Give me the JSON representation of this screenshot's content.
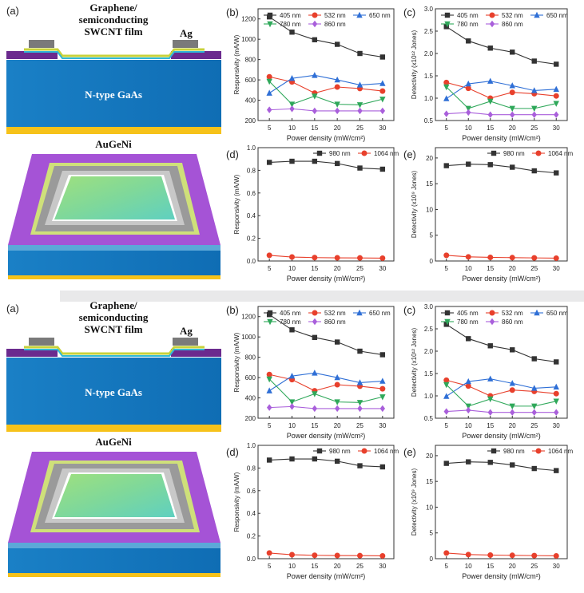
{
  "schematic": {
    "panel_label": "(a)",
    "film_label_1": "Graphene/",
    "film_label_2": "semiconducting",
    "film_label_3": "SWCNT film",
    "electrode_label": "Ag",
    "substrate_label": "N-type GaAs",
    "back_contact_label": "AuGeNi"
  },
  "chart_data": [
    {
      "panel": "(b)",
      "type": "line",
      "x": [
        5,
        10,
        15,
        20,
        25,
        30
      ],
      "xlabel": "Power density (mW/cm²)",
      "ylabel": "Responsivity (mA/W)",
      "ylim": [
        200,
        1300
      ],
      "yticks": [
        200,
        400,
        600,
        800,
        1000,
        1200
      ],
      "legend_columns": 3,
      "series": [
        {
          "name": "405 nm",
          "color": "#333333",
          "marker": "square",
          "values": [
            1220,
            1070,
            995,
            950,
            860,
            825
          ]
        },
        {
          "name": "532 nm",
          "color": "#e8402c",
          "marker": "circle",
          "values": [
            630,
            580,
            470,
            530,
            515,
            490
          ]
        },
        {
          "name": "650 nm",
          "color": "#2f6fd6",
          "marker": "triangle-up",
          "values": [
            470,
            615,
            645,
            600,
            550,
            565
          ]
        },
        {
          "name": "780 nm",
          "color": "#2fa85a",
          "marker": "triangle-down",
          "values": [
            585,
            360,
            440,
            360,
            355,
            410
          ]
        },
        {
          "name": "860 nm",
          "color": "#a95fdb",
          "marker": "diamond",
          "values": [
            305,
            315,
            295,
            295,
            295,
            295
          ]
        }
      ]
    },
    {
      "panel": "(c)",
      "type": "line",
      "x": [
        5,
        10,
        15,
        20,
        25,
        30
      ],
      "xlabel": "Power density (mW/cm²)",
      "ylabel": "Detectivity (x10¹² Jones)",
      "ylim": [
        0.5,
        3.0
      ],
      "yticks": [
        0.5,
        1.0,
        1.5,
        2.0,
        2.5,
        3.0
      ],
      "legend_columns": 3,
      "series": [
        {
          "name": "405 nm",
          "color": "#333333",
          "marker": "square",
          "values": [
            2.6,
            2.28,
            2.12,
            2.03,
            1.83,
            1.76
          ]
        },
        {
          "name": "532 nm",
          "color": "#e8402c",
          "marker": "circle",
          "values": [
            1.35,
            1.22,
            1.0,
            1.13,
            1.1,
            1.05
          ]
        },
        {
          "name": "650 nm",
          "color": "#2f6fd6",
          "marker": "triangle-up",
          "values": [
            0.99,
            1.32,
            1.38,
            1.28,
            1.17,
            1.2
          ]
        },
        {
          "name": "780 nm",
          "color": "#2fa85a",
          "marker": "triangle-down",
          "values": [
            1.25,
            0.77,
            0.93,
            0.77,
            0.77,
            0.88
          ]
        },
        {
          "name": "860 nm",
          "color": "#a95fdb",
          "marker": "diamond",
          "values": [
            0.65,
            0.68,
            0.63,
            0.63,
            0.63,
            0.63
          ]
        }
      ]
    },
    {
      "panel": "(d)",
      "type": "line",
      "x": [
        5,
        10,
        15,
        20,
        25,
        30
      ],
      "xlabel": "Power density (mW/cm²)",
      "ylabel": "Responsivity (mA/W)",
      "ylim": [
        0.0,
        1.0
      ],
      "yticks": [
        0.0,
        0.2,
        0.4,
        0.6,
        0.8,
        1.0
      ],
      "legend_columns": 2,
      "series": [
        {
          "name": "980 nm",
          "color": "#333333",
          "marker": "square",
          "values": [
            0.87,
            0.88,
            0.88,
            0.86,
            0.82,
            0.81
          ]
        },
        {
          "name": "1064 nm",
          "color": "#e8402c",
          "marker": "circle",
          "values": [
            0.05,
            0.035,
            0.03,
            0.028,
            0.027,
            0.025
          ]
        }
      ]
    },
    {
      "panel": "(e)",
      "type": "line",
      "x": [
        5,
        10,
        15,
        20,
        25,
        30
      ],
      "xlabel": "Power density (mW/cm²)",
      "ylabel": "Detectivity (x10⁹ Jones)",
      "ylim": [
        0,
        22
      ],
      "yticks": [
        0,
        5,
        10,
        15,
        20
      ],
      "legend_columns": 2,
      "series": [
        {
          "name": "980 nm",
          "color": "#333333",
          "marker": "square",
          "values": [
            18.5,
            18.8,
            18.7,
            18.2,
            17.5,
            17.1
          ]
        },
        {
          "name": "1064 nm",
          "color": "#e8402c",
          "marker": "circle",
          "values": [
            1.1,
            0.8,
            0.7,
            0.65,
            0.6,
            0.55
          ]
        }
      ]
    }
  ]
}
